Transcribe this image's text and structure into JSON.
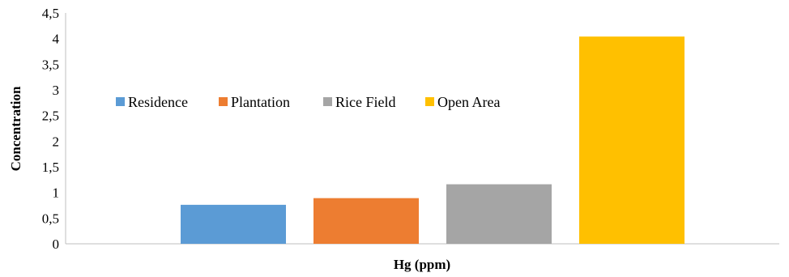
{
  "chart_data": {
    "type": "bar",
    "title": "",
    "xlabel": "Hg (ppm)",
    "ylabel": "Concentration",
    "ylim": [
      0,
      4.5
    ],
    "yticks": [
      "0",
      "0,5",
      "1",
      "1,5",
      "2",
      "2,5",
      "3",
      "3,5",
      "4",
      "4,5"
    ],
    "grid": false,
    "legend_position": "left",
    "series": [
      {
        "name": "Residence",
        "values": [
          0.76
        ],
        "color": "#5b9bd5"
      },
      {
        "name": "Plantation",
        "values": [
          0.89
        ],
        "color": "#ed7d31"
      },
      {
        "name": "Rice Field",
        "values": [
          1.16
        ],
        "color": "#a5a5a5"
      },
      {
        "name": "Open Area",
        "values": [
          4.04
        ],
        "color": "#ffc000"
      }
    ]
  }
}
